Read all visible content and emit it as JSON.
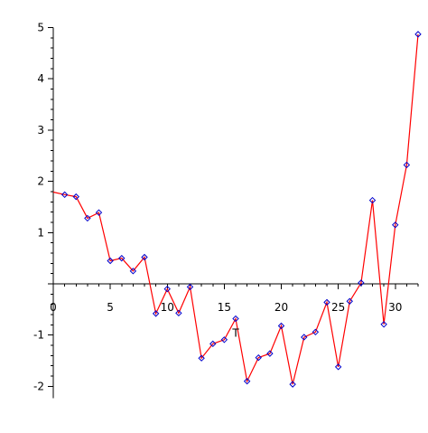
{
  "chart_data": {
    "type": "line",
    "title": "",
    "xlabel": "",
    "ylabel": "",
    "xlim": [
      0,
      32
    ],
    "ylim": [
      -2.2,
      5
    ],
    "x_ticks": [
      5,
      10,
      15,
      20,
      25,
      30
    ],
    "x_tick_labels": [
      "5",
      "10",
      "15",
      "20",
      "25",
      "30"
    ],
    "y_ticks": [
      -2,
      -1,
      0,
      1,
      2,
      3,
      4,
      5
    ],
    "y_tick_labels": [
      "-2",
      "-1",
      "0",
      "1",
      "2",
      "3",
      "4",
      "5"
    ],
    "origin_label": "0",
    "grid": false,
    "legend": "none",
    "annotation": "T",
    "colors": {
      "line": "#ff0000",
      "marker": "#0000cc",
      "axis": "#000000"
    },
    "series": [
      {
        "x": [
          0,
          1,
          2,
          3,
          4,
          5,
          6,
          7,
          8,
          9,
          10,
          11,
          12,
          13,
          14,
          15,
          16,
          17,
          18,
          19,
          20,
          21,
          22,
          23,
          24,
          25,
          26,
          27,
          28,
          29,
          30,
          31,
          32
        ],
        "y": [
          1.79,
          1.74,
          1.7,
          1.28,
          1.39,
          0.45,
          0.5,
          0.25,
          0.52,
          -0.58,
          -0.1,
          -0.57,
          -0.06,
          -1.45,
          -1.17,
          -1.09,
          -0.68,
          -1.9,
          -1.44,
          -1.36,
          -0.82,
          -1.96,
          -1.04,
          -0.94,
          -0.36,
          -1.62,
          -0.34,
          0.02,
          1.63,
          -0.79,
          1.15,
          2.32,
          4.87
        ],
        "markers": [
          false,
          true,
          true,
          true,
          true,
          true,
          true,
          true,
          true,
          true,
          true,
          true,
          true,
          true,
          true,
          true,
          true,
          true,
          true,
          true,
          true,
          true,
          true,
          true,
          true,
          true,
          true,
          true,
          true,
          true,
          true,
          true,
          true
        ]
      }
    ]
  }
}
